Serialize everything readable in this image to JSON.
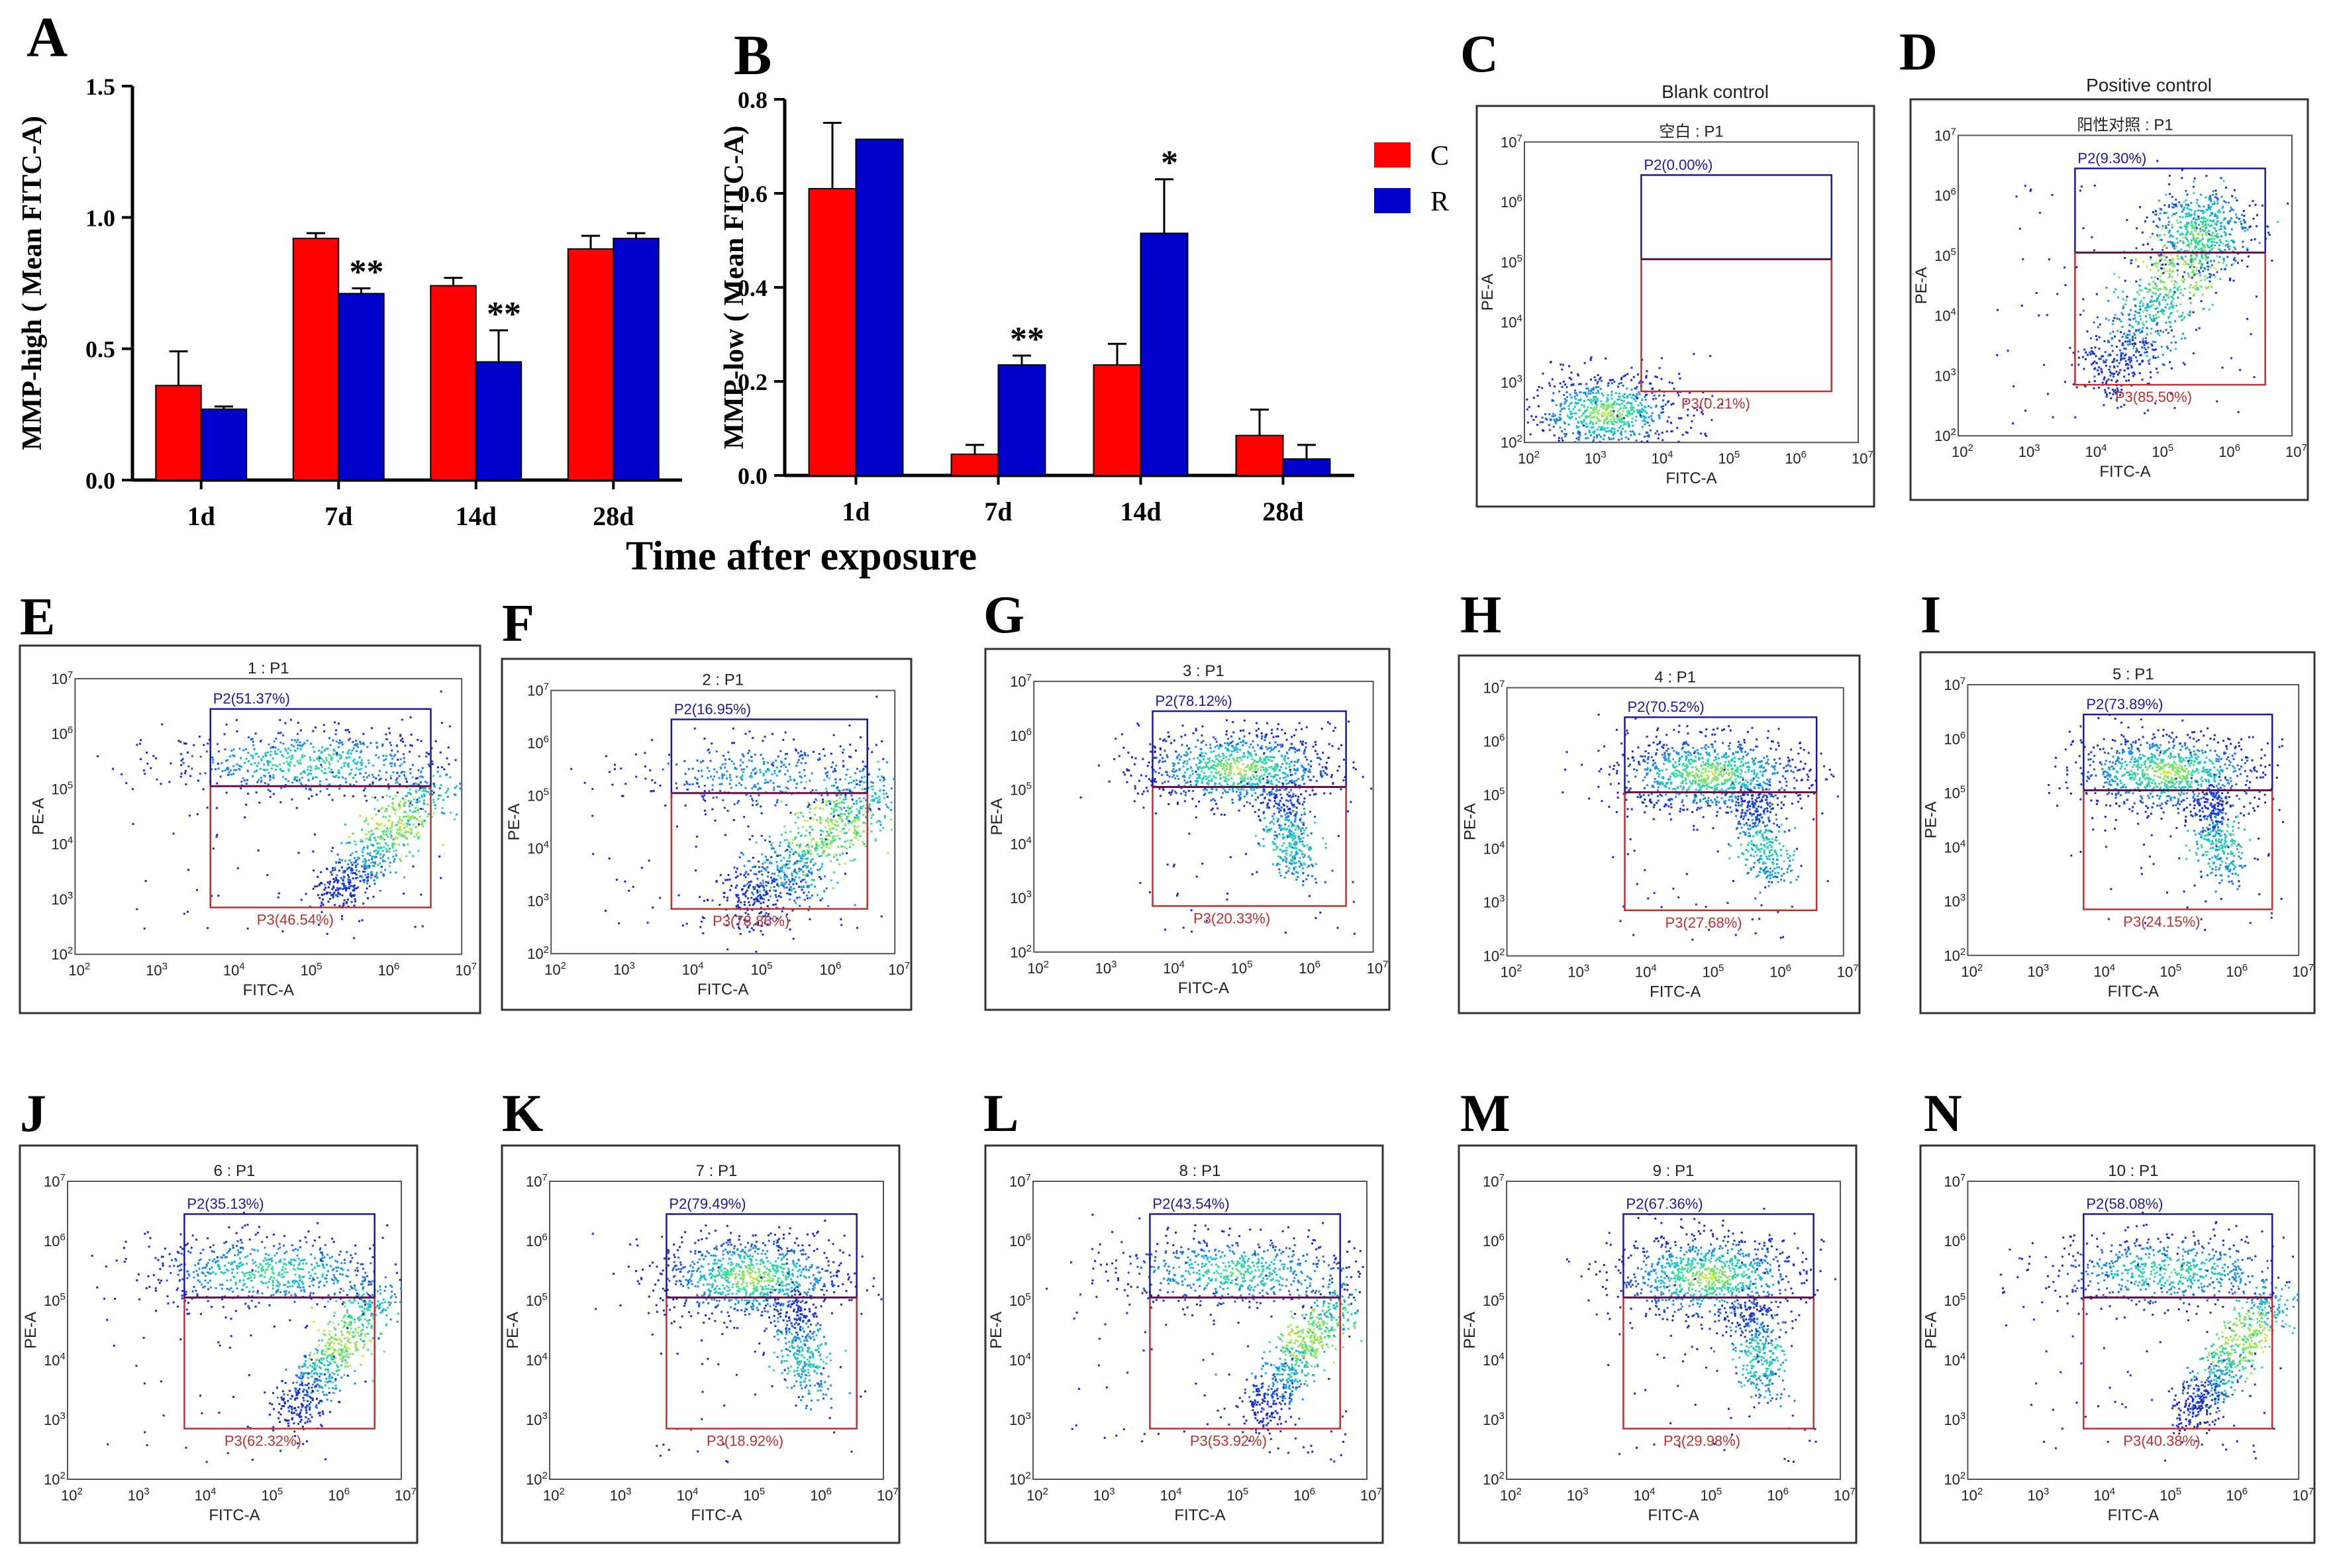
{
  "figure": {
    "xlabel_shared": "Time after exposure",
    "legend": [
      {
        "label": "C",
        "color": "#ff0000"
      },
      {
        "label": "R",
        "color": "#0000cc"
      }
    ]
  },
  "chart_data": [
    {
      "panel": "A",
      "type": "bar",
      "title": "",
      "ylabel": "MMP-high ( Mean FITC-A)",
      "categories": [
        "1d",
        "7d",
        "14d",
        "28d"
      ],
      "ylim": [
        0,
        1.5
      ],
      "yticks": [
        "0.0",
        "0.5",
        "1.0",
        "1.5"
      ],
      "yticks_values": [
        0,
        0.5,
        1.0,
        1.5
      ],
      "series": [
        {
          "name": "C",
          "color": "#ff0000",
          "values": [
            0.36,
            0.92,
            0.74,
            0.88
          ],
          "errors": [
            0.13,
            0.02,
            0.03,
            0.05
          ]
        },
        {
          "name": "R",
          "color": "#0000cc",
          "values": [
            0.27,
            0.71,
            0.45,
            0.92
          ],
          "errors": [
            0.01,
            0.02,
            0.12,
            0.02
          ]
        }
      ],
      "annotations": [
        {
          "category": "7d",
          "series": "R",
          "text": "**"
        },
        {
          "category": "14d",
          "series": "R",
          "text": "**"
        }
      ]
    },
    {
      "panel": "B",
      "type": "bar",
      "title": "",
      "ylabel": "MMP-low ( Mean FITC-A)",
      "categories": [
        "1d",
        "7d",
        "14d",
        "28d"
      ],
      "ylim": [
        0,
        0.8
      ],
      "yticks": [
        "0.0",
        "0.2",
        "0.4",
        "0.6",
        "0.8"
      ],
      "yticks_values": [
        0,
        0.2,
        0.4,
        0.6,
        0.8
      ],
      "series": [
        {
          "name": "C",
          "color": "#ff0000",
          "values": [
            0.61,
            0.045,
            0.235,
            0.085
          ],
          "errors": [
            0.14,
            0.02,
            0.045,
            0.055
          ]
        },
        {
          "name": "R",
          "color": "#0000cc",
          "values": [
            0.715,
            0.235,
            0.515,
            0.035
          ],
          "errors": [
            0,
            0.02,
            0.115,
            0.03
          ]
        }
      ],
      "annotations": [
        {
          "category": "7d",
          "series": "R",
          "text": "**"
        },
        {
          "category": "14d",
          "series": "R",
          "text": "*"
        }
      ]
    }
  ],
  "flow_axes": {
    "xlabel": "FITC-A",
    "ylabel": "PE-A",
    "tick_base": "10",
    "tick_exps": [
      "2",
      "3",
      "4",
      "5",
      "6",
      "7"
    ]
  },
  "flow_panels": [
    {
      "letter": "C",
      "caption": "Blank control",
      "title": "空白 : P1",
      "p2": "P2(0.00%)",
      "p3": "P3(0.21%)",
      "pattern": "blank"
    },
    {
      "letter": "D",
      "caption": "Positive control",
      "title": "阳性对照 : P1",
      "p2": "P2(9.30%)",
      "p3": "P3(85.50%)",
      "pattern": "positive"
    },
    {
      "letter": "E",
      "caption": "",
      "title": "1 : P1",
      "p2": "P2(51.37%)",
      "p3": "P3(46.54%)",
      "pattern": "mixed"
    },
    {
      "letter": "F",
      "caption": "",
      "title": "2 : P1",
      "p2": "P2(16.95%)",
      "p3": "P3(78.86%)",
      "pattern": "low"
    },
    {
      "letter": "G",
      "caption": "",
      "title": "3 : P1",
      "p2": "P2(78.12%)",
      "p3": "P3(20.33%)",
      "pattern": "high"
    },
    {
      "letter": "H",
      "caption": "",
      "title": "4 : P1",
      "p2": "P2(70.52%)",
      "p3": "P3(27.68%)",
      "pattern": "high"
    },
    {
      "letter": "I",
      "caption": "",
      "title": "5 : P1",
      "p2": "P2(73.89%)",
      "p3": "P3(24.15%)",
      "pattern": "high"
    },
    {
      "letter": "J",
      "caption": "",
      "title": "6 : P1",
      "p2": "P2(35.13%)",
      "p3": "P3(62.32%)",
      "pattern": "mixed"
    },
    {
      "letter": "K",
      "caption": "",
      "title": "7 : P1",
      "p2": "P2(79.49%)",
      "p3": "P3(18.92%)",
      "pattern": "high"
    },
    {
      "letter": "L",
      "caption": "",
      "title": "8 : P1",
      "p2": "P2(43.54%)",
      "p3": "P3(53.92%)",
      "pattern": "mixed"
    },
    {
      "letter": "M",
      "caption": "",
      "title": "9 : P1",
      "p2": "P2(67.36%)",
      "p3": "P3(29.98%)",
      "pattern": "high"
    },
    {
      "letter": "N",
      "caption": "",
      "title": "10 : P1",
      "p2": "P2(58.08%)",
      "p3": "P3(40.38%)",
      "pattern": "mixed"
    }
  ]
}
